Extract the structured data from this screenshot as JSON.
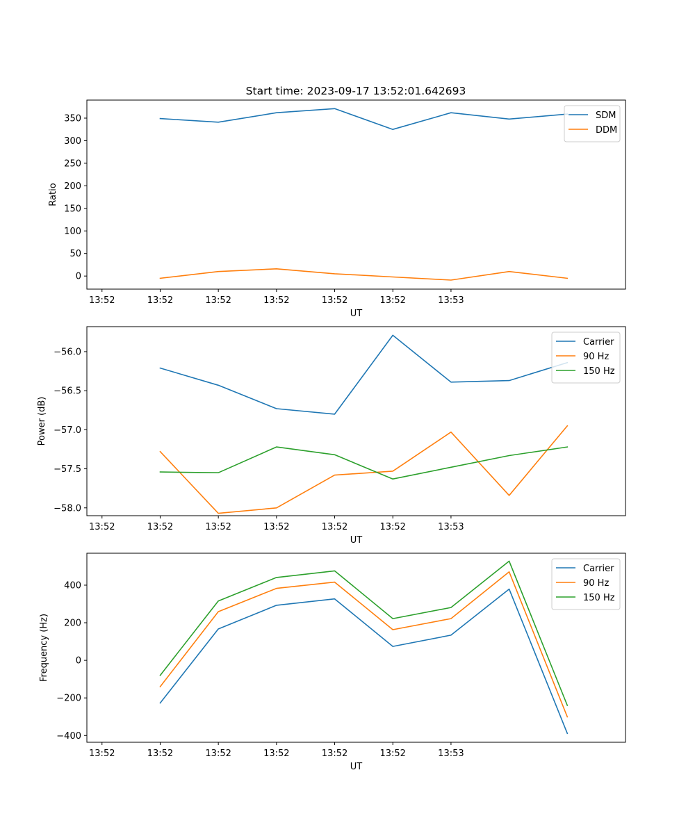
{
  "figure": {
    "title": "Start time: 2023-09-17 13:52:01.642693"
  },
  "chart_data": [
    {
      "type": "line",
      "xlabel": "UT",
      "ylabel": "Ratio",
      "xticks": [
        "13:52",
        "13:52",
        "13:52",
        "13:52",
        "13:52",
        "13:52",
        "13:53"
      ],
      "yticks": [
        0,
        50,
        100,
        150,
        200,
        250,
        300,
        350
      ],
      "ylim": [
        -29,
        390
      ],
      "xlim": [
        -0.76,
        8.5
      ],
      "x": [
        0.5,
        1.5,
        2.5,
        3.5,
        4.5,
        5.5,
        6.5,
        7.5
      ],
      "legend": "top-right",
      "series": [
        {
          "name": "SDM",
          "color": "#1f77b4",
          "values": [
            349,
            341,
            362,
            371,
            325,
            362,
            348,
            359
          ]
        },
        {
          "name": "DDM",
          "color": "#ff7f0e",
          "values": [
            -5,
            10,
            16,
            5,
            -2,
            -9,
            10,
            -5
          ]
        }
      ]
    },
    {
      "type": "line",
      "xlabel": "UT",
      "ylabel": "Power (dB)",
      "xticks": [
        "13:52",
        "13:52",
        "13:52",
        "13:52",
        "13:52",
        "13:52",
        "13:53"
      ],
      "yticks": [
        -56.0,
        -56.5,
        -57.0,
        -57.5,
        -58.0
      ],
      "ylim": [
        -58.1,
        -55.68
      ],
      "xlim": [
        -0.76,
        8.5
      ],
      "x": [
        0.5,
        1.5,
        2.5,
        3.5,
        4.5,
        5.5,
        6.5,
        7.5
      ],
      "legend": "top-right",
      "series": [
        {
          "name": "Carrier",
          "color": "#1f77b4",
          "values": [
            -56.21,
            -56.43,
            -56.73,
            -56.8,
            -55.79,
            -56.39,
            -56.37,
            -56.14
          ]
        },
        {
          "name": "90 Hz",
          "color": "#ff7f0e",
          "values": [
            -57.28,
            -58.07,
            -58.0,
            -57.58,
            -57.53,
            -57.03,
            -57.84,
            -56.95
          ]
        },
        {
          "name": "150 Hz",
          "color": "#2ca02c",
          "values": [
            -57.54,
            -57.55,
            -57.22,
            -57.32,
            -57.63,
            -57.48,
            -57.33,
            -57.22
          ]
        }
      ]
    },
    {
      "type": "line",
      "xlabel": "UT",
      "ylabel": "Frequency (Hz)",
      "xticks": [
        "13:52",
        "13:52",
        "13:52",
        "13:52",
        "13:52",
        "13:52",
        "13:53"
      ],
      "yticks": [
        400,
        200,
        0,
        -200,
        -400
      ],
      "ylim": [
        -436,
        570
      ],
      "xlim": [
        -0.76,
        8.5
      ],
      "x": [
        0.5,
        1.5,
        2.5,
        3.5,
        4.5,
        5.5,
        6.5,
        7.5
      ],
      "legend": "top-right",
      "series": [
        {
          "name": "Carrier",
          "color": "#1f77b4",
          "values": [
            -227,
            167,
            293,
            327,
            74,
            134,
            379,
            -389
          ]
        },
        {
          "name": "90 Hz",
          "color": "#ff7f0e",
          "values": [
            -140,
            259,
            383,
            416,
            163,
            222,
            471,
            -301
          ]
        },
        {
          "name": "150 Hz",
          "color": "#2ca02c",
          "values": [
            -80,
            316,
            441,
            476,
            222,
            281,
            528,
            -240
          ]
        }
      ]
    }
  ]
}
